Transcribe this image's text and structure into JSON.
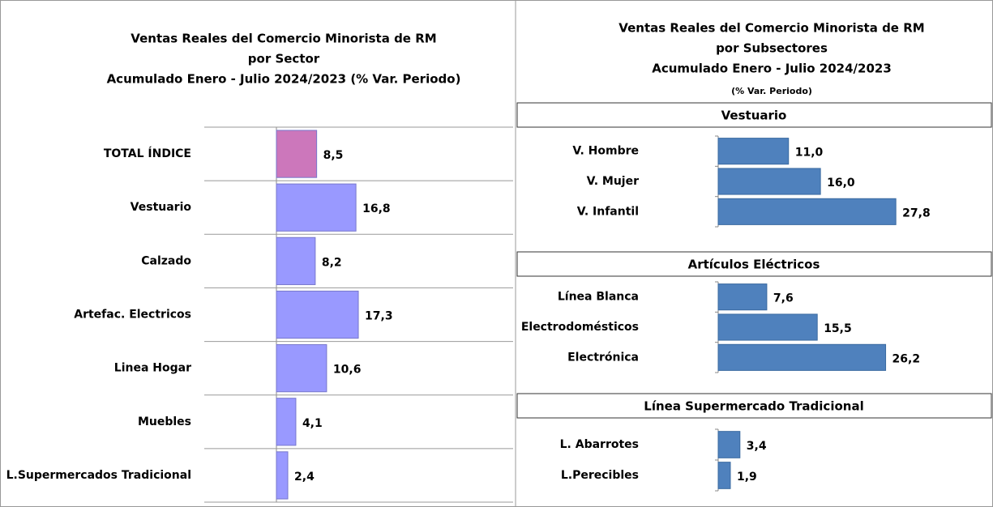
{
  "chart_data": [
    {
      "type": "bar",
      "orientation": "horizontal",
      "title": [
        "Ventas Reales del Comercio Minorista de RM",
        "por Sector",
        "Acumulado Enero - Julio  2024/2023 (% Var. Periodo)"
      ],
      "categories": [
        "TOTAL ÍNDICE",
        "Vestuario",
        "Calzado",
        "Artefac. Electricos",
        "Linea Hogar",
        "Muebles",
        "L.Supermercados Tradicional"
      ],
      "values": [
        8.5,
        16.8,
        8.2,
        17.3,
        10.6,
        4.1,
        2.4
      ],
      "value_labels": [
        "8,5",
        "16,8",
        "8,2",
        "17,3",
        "10,6",
        "4,1",
        "2,4"
      ],
      "colors": [
        "#cc77bb",
        "#9999ff",
        "#9999ff",
        "#9999ff",
        "#9999ff",
        "#9999ff",
        "#9999ff"
      ],
      "xlim": [
        0,
        50
      ]
    },
    {
      "type": "bar",
      "orientation": "horizontal",
      "title": [
        "Ventas Reales del Comercio Minorista de RM",
        "por Subsectores",
        "Acumulado Enero - Julio  2024/2023"
      ],
      "subtitle": "(% Var. Periodo)",
      "color": "#4f81bd",
      "xlim": [
        0,
        43
      ],
      "panels": [
        {
          "title": "Vestuario",
          "categories": [
            "V. Hombre",
            "V. Mujer",
            "V. Infantil"
          ],
          "values": [
            11.0,
            16.0,
            27.8
          ],
          "value_labels": [
            "11,0",
            "16,0",
            "27,8"
          ]
        },
        {
          "title": "Artículos Eléctricos",
          "categories": [
            "Línea Blanca",
            "Electrodomésticos",
            "Electrónica"
          ],
          "values": [
            7.6,
            15.5,
            26.2
          ],
          "value_labels": [
            "7,6",
            "15,5",
            "26,2"
          ]
        },
        {
          "title": "Línea  Supermercado Tradicional",
          "categories": [
            "L. Abarrotes",
            "L.Perecibles"
          ],
          "values": [
            3.4,
            1.9
          ],
          "value_labels": [
            "3,4",
            "1,9"
          ]
        }
      ]
    }
  ]
}
